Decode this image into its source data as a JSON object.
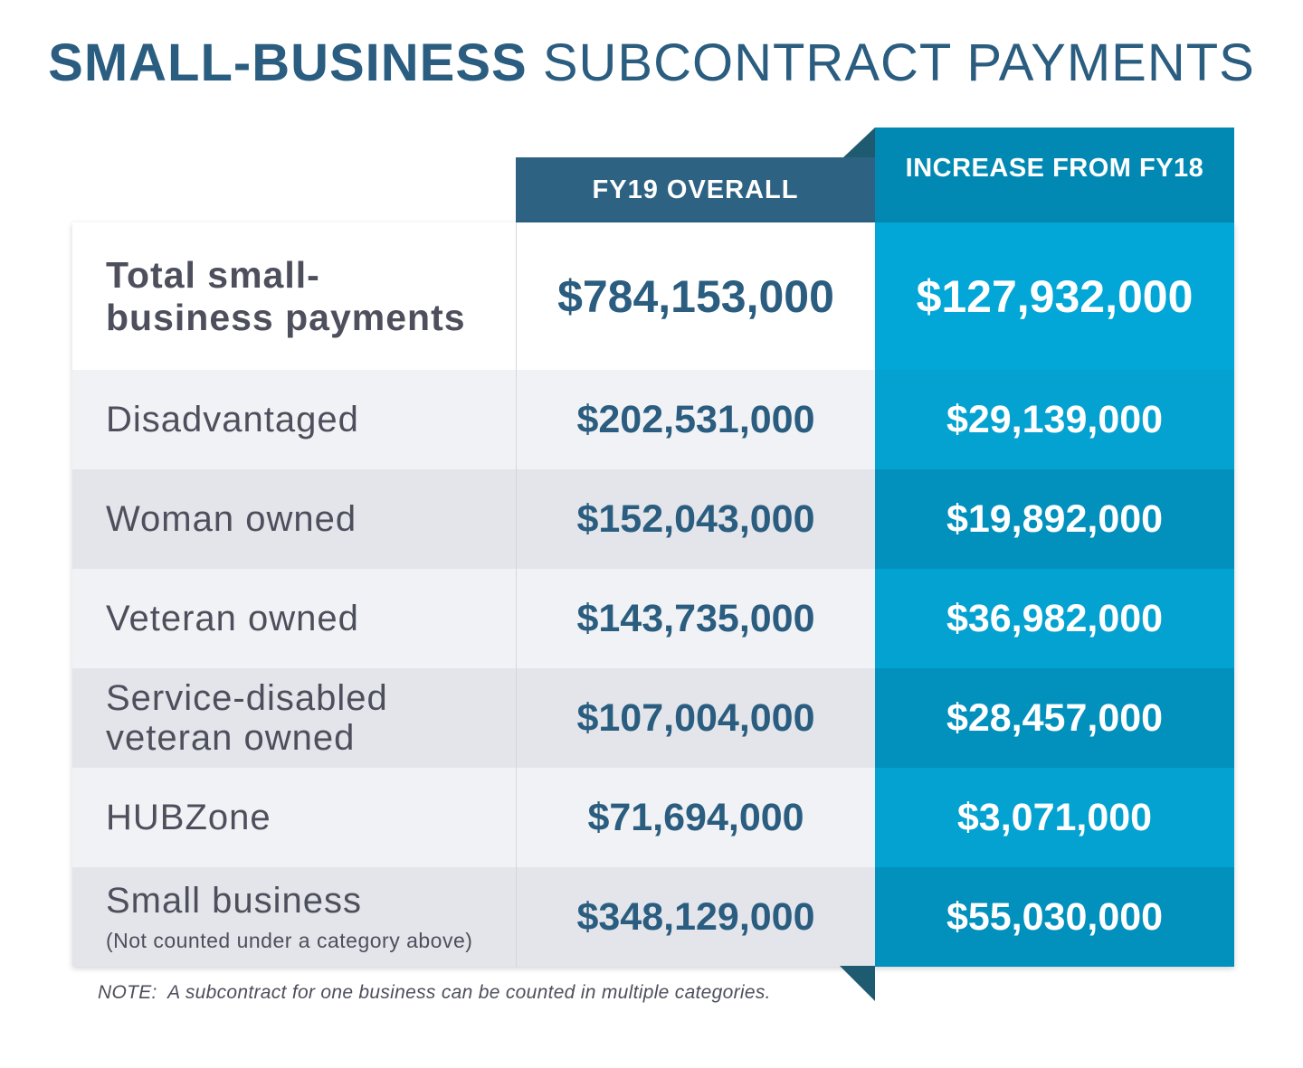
{
  "title": {
    "bold": "SMALL-BUSINESS",
    "light": "SUBCONTRACT PAYMENTS"
  },
  "chart_data": {
    "type": "table",
    "title": "SMALL-BUSINESS SUBCONTRACT PAYMENTS",
    "columns": [
      "FY19 OVERALL",
      "INCREASE FROM FY18"
    ],
    "rows": [
      {
        "label": "Total small-business payments",
        "sublabel": "",
        "fy19": "$784,153,000",
        "increase": "$127,932,000"
      },
      {
        "label": "Disadvantaged",
        "sublabel": "",
        "fy19": "$202,531,000",
        "increase": "$29,139,000"
      },
      {
        "label": "Woman owned",
        "sublabel": "",
        "fy19": "$152,043,000",
        "increase": "$19,892,000"
      },
      {
        "label": "Veteran owned",
        "sublabel": "",
        "fy19": "$143,735,000",
        "increase": "$36,982,000"
      },
      {
        "label": "Service-disabled veteran owned",
        "sublabel": "",
        "fy19": "$107,004,000",
        "increase": "$28,457,000"
      },
      {
        "label": "HUBZone",
        "sublabel": "",
        "fy19": "$71,694,000",
        "increase": "$3,071,000"
      },
      {
        "label": "Small business",
        "sublabel": "(Not counted under a category above)",
        "fy19": "$348,129,000",
        "increase": "$55,030,000"
      }
    ],
    "note": "NOTE:  A subcontract for one business can be counted in multiple categories."
  },
  "colors": {
    "title": "#2a5d7f",
    "header_fy19": "#2d6283",
    "header_increase": "#0289b3",
    "increase_column": "#04a2d1",
    "label_text": "#4d4f5c"
  }
}
